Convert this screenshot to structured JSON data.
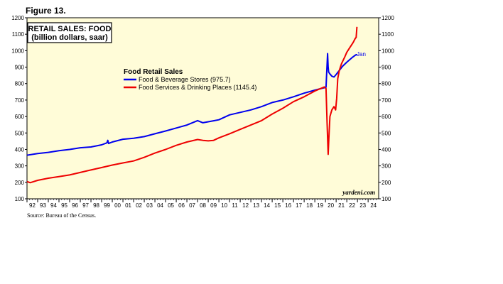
{
  "figure_label": "Figure 13.",
  "source": "Source: Bureau of the Census.",
  "chart_data": {
    "type": "line",
    "title": "RETAIL SALES: FOOD",
    "subtitle": "(billion dollars, saar)",
    "legend": {
      "title": "Food Retail Sales",
      "placement": "upper-left-center"
    },
    "credit": "yardeni.com",
    "end_label": "Jan",
    "ylim": [
      100,
      1200
    ],
    "y_ticks": [
      100,
      200,
      300,
      400,
      500,
      600,
      700,
      800,
      900,
      1000,
      1100,
      1200
    ],
    "xlim": [
      1992,
      2024.99
    ],
    "x_tick_labels": [
      "92",
      "93",
      "94",
      "95",
      "96",
      "97",
      "98",
      "99",
      "00",
      "01",
      "02",
      "03",
      "04",
      "05",
      "06",
      "07",
      "08",
      "09",
      "10",
      "11",
      "12",
      "13",
      "14",
      "15",
      "16",
      "17",
      "18",
      "19",
      "20",
      "21",
      "22",
      "23",
      "24"
    ],
    "grid": false,
    "series": [
      {
        "name": "Food & Beverage Stores (975.7)",
        "color": "#0000ee",
        "x": [
          1992.0,
          1993.0,
          1994.0,
          1995.0,
          1996.0,
          1997.0,
          1998.0,
          1999.0,
          1999.5,
          1999.58,
          1999.66,
          2000.0,
          2001.0,
          2002.0,
          2003.0,
          2004.0,
          2005.0,
          2006.0,
          2007.0,
          2008.0,
          2008.5,
          2009.0,
          2009.5,
          2010.0,
          2011.0,
          2012.0,
          2013.0,
          2014.0,
          2015.0,
          2016.0,
          2017.0,
          2018.0,
          2019.0,
          2019.9,
          2020.05,
          2020.2,
          2020.25,
          2020.3,
          2020.4,
          2020.6,
          2020.8,
          2021.0,
          2021.3,
          2021.6,
          2022.0,
          2022.5,
          2022.85,
          2023.0
        ],
        "y": [
          365,
          375,
          382,
          392,
          400,
          410,
          415,
          428,
          440,
          455,
          436,
          445,
          462,
          468,
          478,
          495,
          512,
          530,
          548,
          575,
          562,
          568,
          574,
          580,
          610,
          625,
          640,
          660,
          685,
          700,
          720,
          742,
          760,
          775,
          778,
          982,
          900,
          870,
          860,
          845,
          840,
          855,
          880,
          905,
          930,
          958,
          975,
          976
        ]
      },
      {
        "name": "Food Services & Drinking Places (1145.4)",
        "color": "#ee0000",
        "x": [
          1992.0,
          1992.3,
          1993.0,
          1994.0,
          1995.0,
          1996.0,
          1997.0,
          1998.0,
          1999.0,
          2000.0,
          2001.0,
          2002.0,
          2003.0,
          2004.0,
          2005.0,
          2006.0,
          2007.0,
          2008.0,
          2008.5,
          2009.0,
          2009.5,
          2010.0,
          2011.0,
          2012.0,
          2013.0,
          2014.0,
          2015.0,
          2016.0,
          2017.0,
          2018.0,
          2019.0,
          2019.9,
          2020.05,
          2020.15,
          2020.25,
          2020.32,
          2020.42,
          2020.6,
          2020.8,
          2020.95,
          2021.05,
          2021.15,
          2021.3,
          2021.5,
          2021.8,
          2022.0,
          2022.3,
          2022.6,
          2022.8,
          2022.88,
          2022.95
        ],
        "y": [
          205,
          198,
          212,
          225,
          235,
          245,
          260,
          275,
          290,
          305,
          318,
          330,
          352,
          378,
          400,
          425,
          445,
          460,
          455,
          452,
          455,
          470,
          495,
          522,
          548,
          575,
          615,
          650,
          690,
          720,
          755,
          780,
          770,
          560,
          370,
          470,
          600,
          640,
          660,
          640,
          710,
          830,
          880,
          920,
          960,
          990,
          1020,
          1050,
          1075,
          1080,
          1145
        ]
      }
    ]
  }
}
